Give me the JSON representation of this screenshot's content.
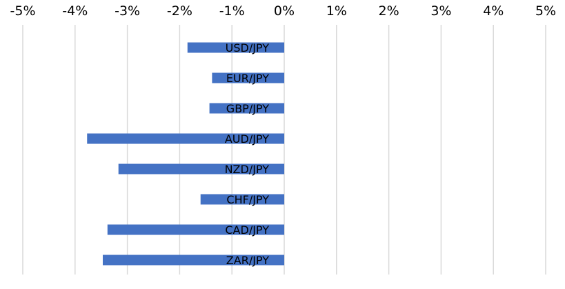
{
  "chart_data": {
    "type": "bar",
    "orientation": "horizontal",
    "title": "",
    "xlabel": "",
    "ylabel": "",
    "categories": [
      "USD/JPY",
      "EUR/JPY",
      "GBP/JPY",
      "AUD/JPY",
      "NZD/JPY",
      "CHF/JPY",
      "CAD/JPY",
      "ZAR/JPY"
    ],
    "values": [
      -1.85,
      -1.38,
      -1.43,
      -3.77,
      -3.17,
      -1.6,
      -3.38,
      -3.47
    ],
    "unit": "%",
    "xlim": [
      -5,
      5
    ],
    "x_ticks": [
      -5,
      -4,
      -3,
      -2,
      -1,
      0,
      1,
      2,
      3,
      4,
      5
    ],
    "x_tick_labels": [
      "-5%",
      "-4%",
      "-3%",
      "-2%",
      "-1%",
      "0%",
      "1%",
      "2%",
      "3%",
      "4%",
      "5%"
    ],
    "x_axis_position": "top",
    "grid": true,
    "legend": "none",
    "bar_color": "#4472C4",
    "grid_color": "#D9D9D9"
  }
}
